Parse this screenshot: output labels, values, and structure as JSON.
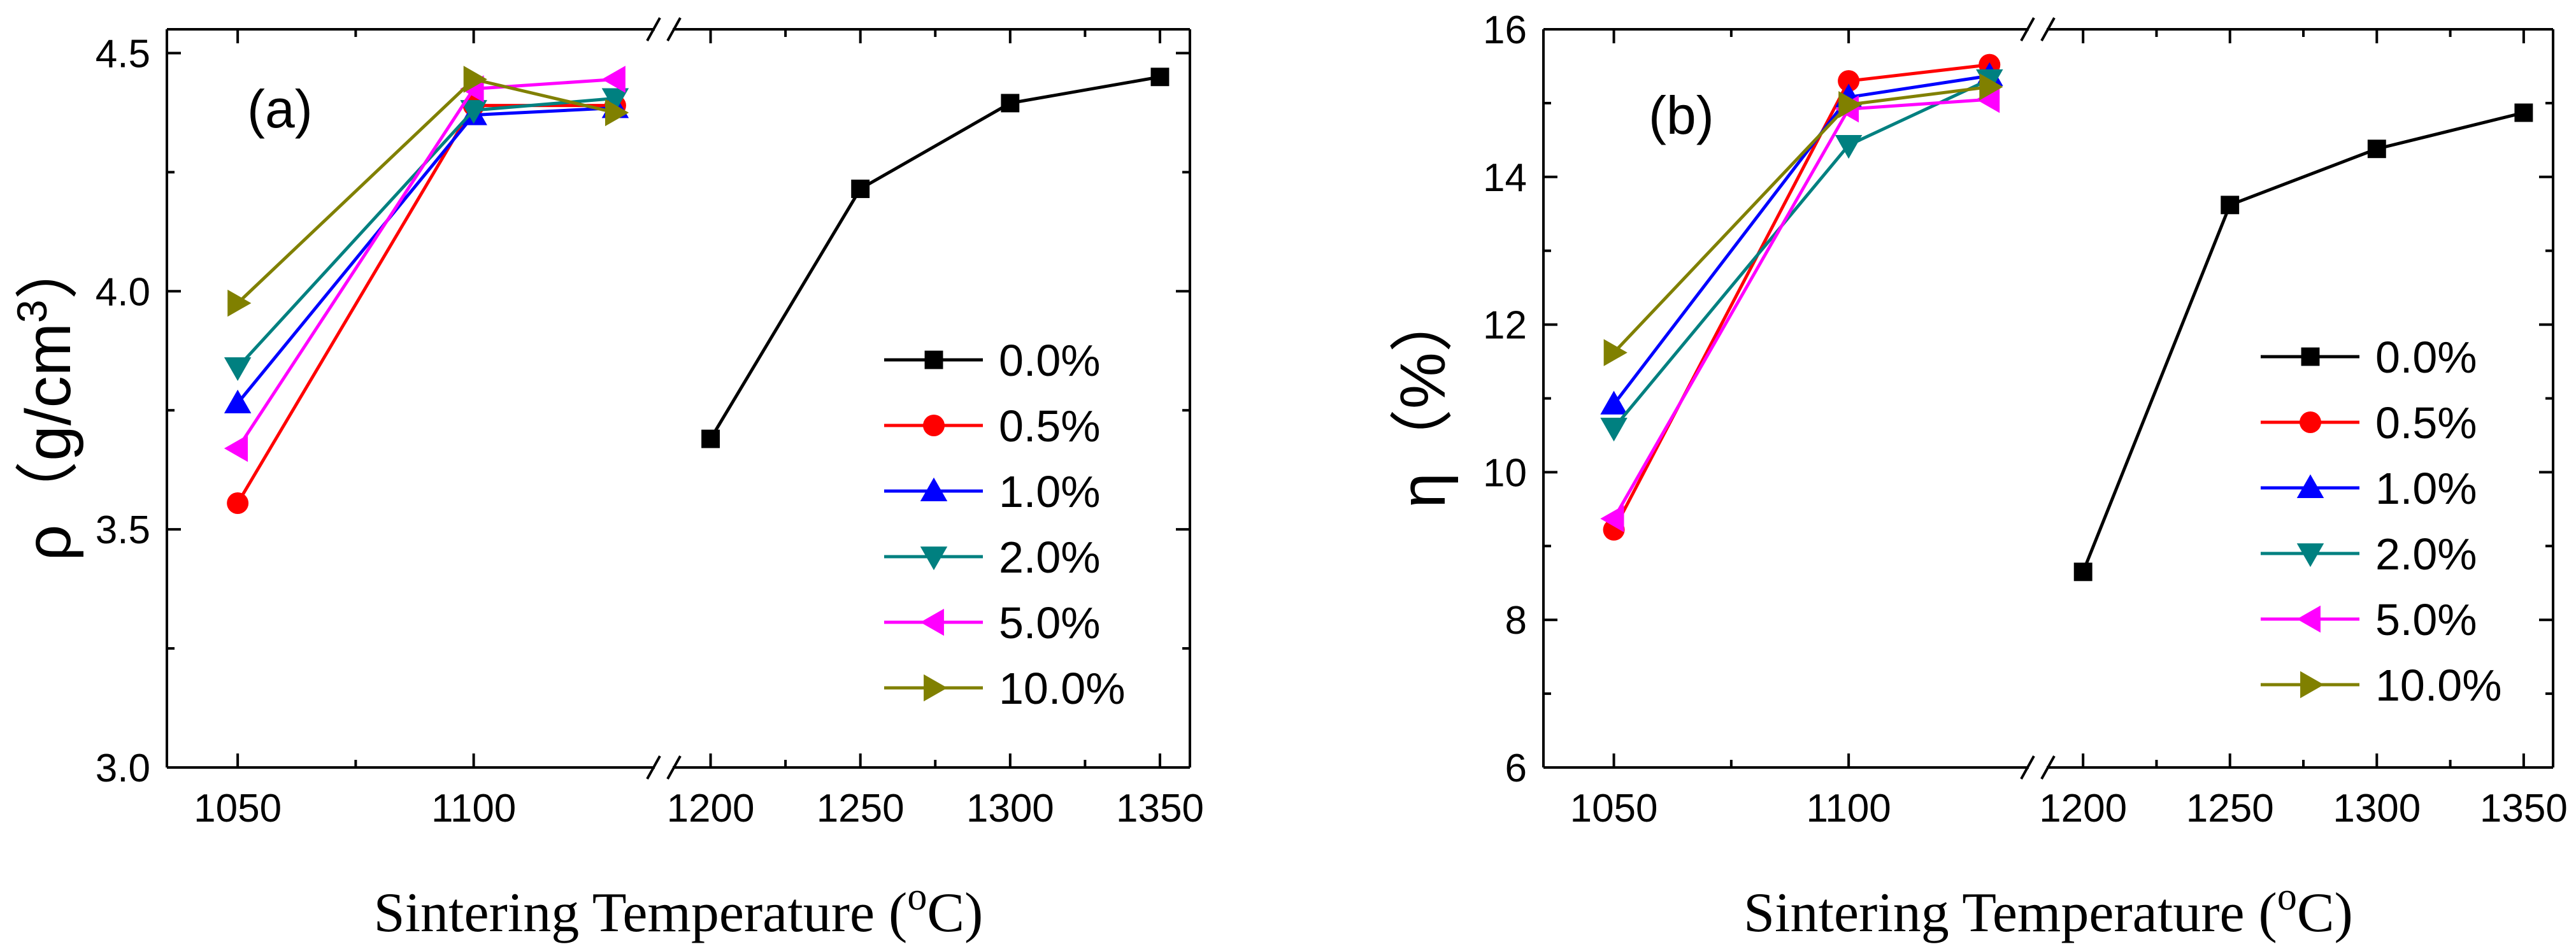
{
  "chart_data": [
    {
      "type": "line",
      "panel_label": "(a)",
      "ylabel_symbol": "ρ",
      "ylabel_paren_open": "（",
      "ylabel_unit": "g/cm",
      "ylabel_sup": "3",
      "ylabel_paren_close": "）",
      "xlabel_text": "Sintering Temperature (",
      "xlabel_sup": "o",
      "xlabel_end": "C)",
      "ylim": [
        3.0,
        4.55
      ],
      "yticks": [
        3.0,
        3.5,
        4.0,
        4.5
      ],
      "ytick_labels": [
        "3.0",
        "3.5",
        "4.0",
        "4.5"
      ],
      "xaxis_break": true,
      "xticks": [
        1050,
        1100,
        1200,
        1250,
        1300,
        1350
      ],
      "xtick_labels": [
        "1050",
        "1100",
        "1200",
        "1250",
        "1300",
        "1350"
      ],
      "legend_position": "center-right",
      "series": [
        {
          "name": "0.0%",
          "color": "#000000",
          "marker": "square",
          "x": [
            1200,
            1250,
            1300,
            1350
          ],
          "y": [
            3.69,
            4.215,
            4.395,
            4.45
          ]
        },
        {
          "name": "0.5%",
          "color": "#ff0000",
          "marker": "circle",
          "x": [
            1050,
            1100,
            1130
          ],
          "y": [
            3.555,
            4.39,
            4.39
          ]
        },
        {
          "name": "1.0%",
          "color": "#0000ff",
          "marker": "triangle-up",
          "x": [
            1050,
            1100,
            1130
          ],
          "y": [
            3.765,
            4.37,
            4.385
          ]
        },
        {
          "name": "2.0%",
          "color": "#008080",
          "marker": "triangle-down",
          "x": [
            1050,
            1100,
            1130
          ],
          "y": [
            3.84,
            4.38,
            4.405
          ]
        },
        {
          "name": "5.0%",
          "color": "#ff00ff",
          "marker": "triangle-left",
          "x": [
            1050,
            1100,
            1130
          ],
          "y": [
            3.67,
            4.425,
            4.445
          ]
        },
        {
          "name": "10.0%",
          "color": "#808000",
          "marker": "triangle-right",
          "x": [
            1050,
            1100,
            1130
          ],
          "y": [
            3.975,
            4.445,
            4.375
          ]
        }
      ]
    },
    {
      "type": "line",
      "panel_label": "(b)",
      "ylabel_symbol": "η",
      "ylabel_paren_open": "（",
      "ylabel_unit": "%",
      "ylabel_sup": "",
      "ylabel_paren_close": "）",
      "xlabel_text": "Sintering Temperature (",
      "xlabel_sup": "o",
      "xlabel_end": "C)",
      "ylim": [
        6,
        16
      ],
      "yticks": [
        6,
        8,
        10,
        12,
        14,
        16
      ],
      "ytick_labels": [
        "6",
        "8",
        "10",
        "12",
        "14",
        "16"
      ],
      "xaxis_break": true,
      "xticks": [
        1050,
        1100,
        1200,
        1250,
        1300,
        1350
      ],
      "xtick_labels": [
        "1050",
        "1100",
        "1200",
        "1250",
        "1300",
        "1350"
      ],
      "legend_position": "center-right",
      "series": [
        {
          "name": "0.0%",
          "color": "#000000",
          "marker": "square",
          "x": [
            1200,
            1250,
            1300,
            1350
          ],
          "y": [
            8.65,
            13.62,
            14.38,
            14.87
          ]
        },
        {
          "name": "0.5%",
          "color": "#ff0000",
          "marker": "circle",
          "x": [
            1050,
            1100,
            1130
          ],
          "y": [
            9.22,
            15.3,
            15.52
          ]
        },
        {
          "name": "1.0%",
          "color": "#0000ff",
          "marker": "triangle-up",
          "x": [
            1050,
            1100,
            1130
          ],
          "y": [
            10.92,
            15.08,
            15.37
          ]
        },
        {
          "name": "2.0%",
          "color": "#008080",
          "marker": "triangle-down",
          "x": [
            1050,
            1100,
            1130
          ],
          "y": [
            10.6,
            14.43,
            15.32
          ]
        },
        {
          "name": "5.0%",
          "color": "#ff00ff",
          "marker": "triangle-left",
          "x": [
            1050,
            1100,
            1130
          ],
          "y": [
            9.37,
            14.92,
            15.05
          ]
        },
        {
          "name": "10.0%",
          "color": "#808000",
          "marker": "triangle-right",
          "x": [
            1050,
            1100,
            1130
          ],
          "y": [
            11.62,
            14.98,
            15.22
          ]
        }
      ]
    }
  ]
}
